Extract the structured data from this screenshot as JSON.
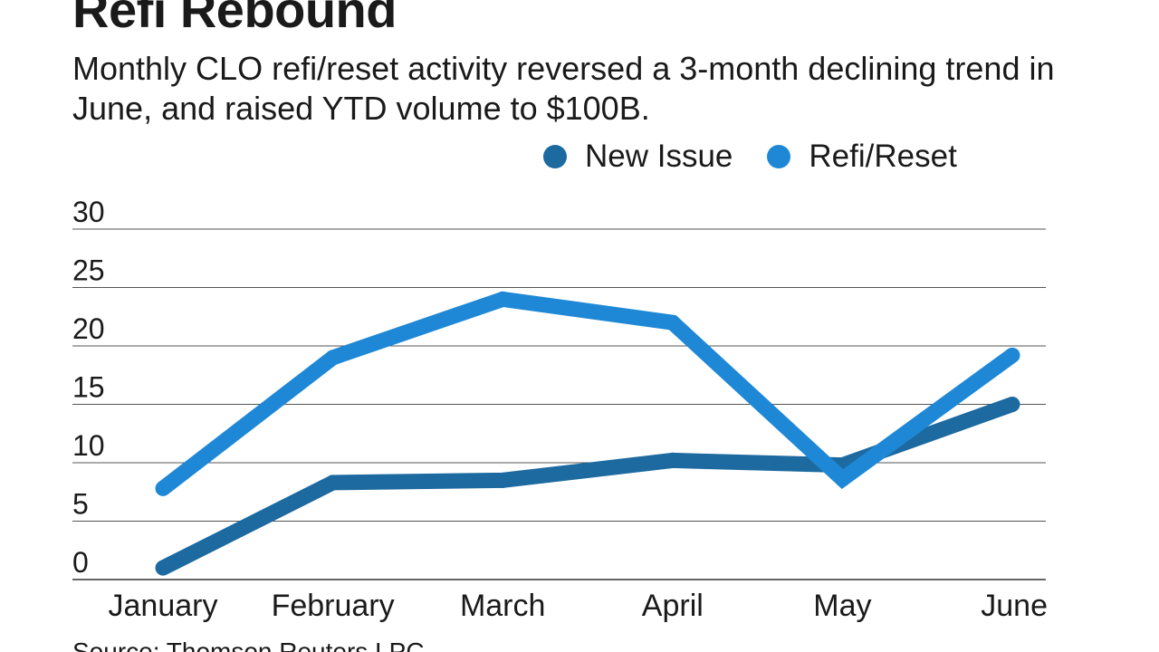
{
  "title": "Refi Rebound",
  "subtitle": "Monthly CLO refi/reset activity reversed a 3-month declining trend in June, and raised YTD volume to $100B.",
  "source": "Source: Thomson Reuters LPC",
  "chart_data": {
    "type": "line",
    "title": "Refi Rebound",
    "subtitle": "Monthly CLO refi/reset activity reversed a 3-month declining trend in June, and raised YTD volume to $100B.",
    "categories": [
      "January",
      "February",
      "March",
      "April",
      "May",
      "June"
    ],
    "ylim": [
      0,
      30
    ],
    "yticks": [
      0,
      5,
      10,
      15,
      20,
      25,
      30
    ],
    "xlabel": "",
    "ylabel": "",
    "grid": true,
    "legend_position": "top-right",
    "series": [
      {
        "name": "New Issue",
        "color": "#1c6aa0",
        "values": [
          1,
          8.3,
          8.5,
          10.2,
          9.8,
          15
        ]
      },
      {
        "name": "Refi/Reset",
        "color": "#1e88d6",
        "values": [
          7.8,
          19,
          24,
          22,
          8.6,
          19.2
        ]
      }
    ]
  }
}
